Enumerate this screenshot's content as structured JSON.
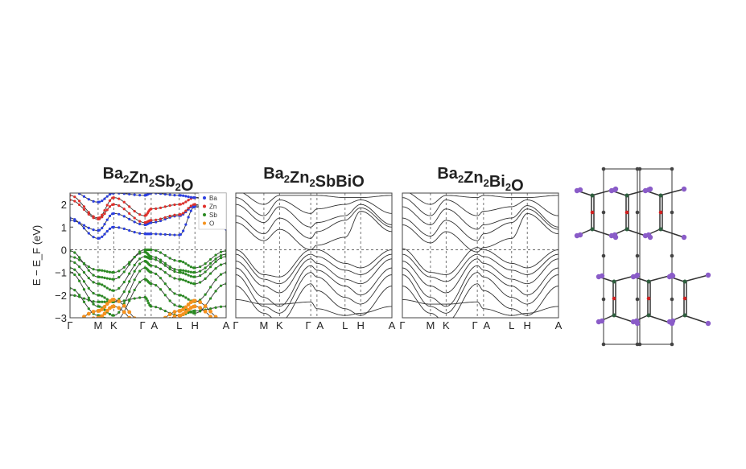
{
  "chart_data": [
    {
      "type": "line",
      "title": "Ba2Zn2Sb2O",
      "ylabel": "E − E_F (eV)",
      "ylim": [
        -3,
        2.5
      ],
      "yticks": [
        "2",
        "1",
        "0",
        "−1",
        "−2",
        "−3"
      ],
      "kpath": [
        "Γ",
        "M",
        "K",
        "Γ",
        "A",
        "L",
        "H",
        "A"
      ],
      "kpos": [
        0,
        0.18,
        0.28,
        0.48,
        0.52,
        0.7,
        0.8,
        1.0
      ],
      "grid": "dashed at high-symmetry points and E=0",
      "legend": {
        "placement": "top-right",
        "entries": [
          {
            "name": "Ba",
            "color": "#2b3fe0"
          },
          {
            "name": "Zn",
            "color": "#e0302b"
          },
          {
            "name": "Sb",
            "color": "#2a8a22"
          },
          {
            "name": "O",
            "color": "#f5921e"
          }
        ]
      },
      "bands": [
        {
          "proj": "Ba",
          "values": [
            1.4,
            0.5,
            1.0,
            0.7,
            0.7,
            0.65,
            1.9,
            0.9
          ]
        },
        {
          "proj": "Ba",
          "values": [
            1.3,
            0.85,
            1.6,
            1.1,
            1.2,
            1.5,
            1.95,
            1.0
          ]
        },
        {
          "proj": "Zn",
          "values": [
            2.2,
            1.35,
            2.0,
            1.2,
            1.3,
            1.55,
            2.0,
            1.0
          ]
        },
        {
          "proj": "Zn",
          "values": [
            2.4,
            1.4,
            2.3,
            1.5,
            1.8,
            2.0,
            2.3,
            1.5
          ]
        },
        {
          "proj": "Ba",
          "values": [
            2.6,
            2.1,
            2.5,
            2.4,
            2.5,
            2.4,
            2.3,
            2.5
          ]
        },
        {
          "proj": "Sb",
          "values": [
            -0.05,
            -1.2,
            -1.3,
            0.0,
            0.0,
            -0.5,
            -0.8,
            -0.05
          ]
        },
        {
          "proj": "Sb",
          "values": [
            -0.3,
            -0.9,
            -1.0,
            -0.1,
            -0.3,
            -0.9,
            -1.0,
            -0.2
          ]
        },
        {
          "proj": "Sb",
          "values": [
            -0.5,
            -1.5,
            -1.8,
            -0.3,
            -0.4,
            -1.0,
            -1.2,
            -0.3
          ]
        },
        {
          "proj": "Sb",
          "values": [
            -0.8,
            -2.0,
            -2.3,
            -0.5,
            -0.7,
            -1.3,
            -1.5,
            -0.6
          ]
        },
        {
          "proj": "Sb",
          "values": [
            -1.0,
            -2.5,
            -2.9,
            -0.8,
            -1.0,
            -2.0,
            -2.3,
            -1.0
          ]
        },
        {
          "proj": "Sb",
          "values": [
            -1.7,
            -2.9,
            -3.2,
            -1.3,
            -1.5,
            -2.5,
            -2.8,
            -1.5
          ]
        },
        {
          "proj": "Sb",
          "values": [
            -2.0,
            -2.3,
            -2.3,
            -2.1,
            -2.5,
            -2.9,
            -2.7,
            -2.5
          ]
        },
        {
          "proj": "O",
          "values": [
            -3.2,
            -2.7,
            -2.2,
            -3.3,
            -3.3,
            -2.7,
            -2.25,
            -3.2
          ]
        },
        {
          "proj": "O",
          "values": [
            -3.4,
            -3.0,
            -2.5,
            -3.5,
            -3.5,
            -2.9,
            -2.5,
            -3.4
          ]
        }
      ]
    },
    {
      "type": "line",
      "title": "Ba2Zn2SbBiO",
      "ylim": [
        -3,
        2.5
      ],
      "kpath": [
        "Γ",
        "M",
        "K",
        "Γ",
        "A",
        "L",
        "H",
        "A"
      ],
      "kpos": [
        0,
        0.18,
        0.28,
        0.48,
        0.52,
        0.7,
        0.8,
        1.0
      ],
      "bands": [
        {
          "values": [
            1.2,
            0.4,
            0.9,
            0.0,
            0.2,
            0.55,
            1.7,
            0.8
          ]
        },
        {
          "values": [
            1.5,
            0.7,
            1.4,
            0.5,
            0.8,
            1.3,
            1.85,
            1.0
          ]
        },
        {
          "values": [
            2.0,
            1.2,
            1.9,
            1.0,
            1.2,
            1.5,
            2.0,
            1.1
          ]
        },
        {
          "values": [
            2.3,
            1.5,
            2.2,
            1.6,
            1.8,
            2.0,
            2.2,
            1.6
          ]
        },
        {
          "values": [
            2.6,
            2.0,
            2.4,
            2.4,
            2.4,
            2.3,
            2.3,
            2.4
          ]
        },
        {
          "values": [
            0.0,
            -1.1,
            -1.2,
            0.0,
            0.0,
            -0.6,
            -0.8,
            0.0
          ]
        },
        {
          "values": [
            -0.2,
            -1.3,
            -1.5,
            -0.2,
            -0.3,
            -0.9,
            -1.1,
            -0.2
          ]
        },
        {
          "values": [
            -0.5,
            -1.6,
            -1.9,
            -0.4,
            -0.6,
            -1.3,
            -1.5,
            -0.4
          ]
        },
        {
          "values": [
            -0.8,
            -2.1,
            -2.5,
            -0.7,
            -0.9,
            -1.6,
            -2.0,
            -0.8
          ]
        },
        {
          "values": [
            -1.1,
            -2.5,
            -2.8,
            -1.0,
            -1.2,
            -2.1,
            -2.4,
            -1.1
          ]
        },
        {
          "values": [
            -1.6,
            -2.8,
            -3.2,
            -1.5,
            -1.8,
            -2.6,
            -2.9,
            -1.6
          ]
        },
        {
          "values": [
            -2.2,
            -2.4,
            -2.4,
            -2.3,
            -2.6,
            -2.9,
            -2.8,
            -2.5
          ]
        }
      ]
    },
    {
      "type": "line",
      "title": "Ba2Zn2Bi2O",
      "ylim": [
        -3,
        2.5
      ],
      "kpath": [
        "Γ",
        "M",
        "K",
        "Γ",
        "A",
        "L",
        "H",
        "A"
      ],
      "kpos": [
        0,
        0.18,
        0.28,
        0.48,
        0.52,
        0.7,
        0.8,
        1.0
      ],
      "bands": [
        {
          "values": [
            1.1,
            0.3,
            0.8,
            -0.1,
            0.1,
            0.5,
            1.6,
            0.7
          ]
        },
        {
          "values": [
            1.4,
            0.6,
            1.3,
            0.4,
            0.7,
            1.2,
            1.8,
            0.9
          ]
        },
        {
          "values": [
            1.9,
            1.1,
            1.8,
            0.9,
            1.1,
            1.4,
            1.95,
            1.0
          ]
        },
        {
          "values": [
            2.3,
            1.5,
            2.2,
            1.5,
            1.7,
            1.9,
            2.2,
            1.5
          ]
        },
        {
          "values": [
            2.6,
            2.0,
            2.4,
            2.3,
            2.4,
            2.3,
            2.3,
            2.4
          ]
        },
        {
          "values": [
            0.05,
            -1.0,
            -1.1,
            0.1,
            0.0,
            -0.6,
            -0.8,
            0.0
          ]
        },
        {
          "values": [
            -0.2,
            -1.2,
            -1.4,
            -0.2,
            -0.3,
            -0.9,
            -1.1,
            -0.2
          ]
        },
        {
          "values": [
            -0.5,
            -1.6,
            -1.9,
            -0.4,
            -0.6,
            -1.3,
            -1.5,
            -0.4
          ]
        },
        {
          "values": [
            -0.8,
            -2.1,
            -2.5,
            -0.7,
            -0.9,
            -1.6,
            -2.0,
            -0.8
          ]
        },
        {
          "values": [
            -1.1,
            -2.5,
            -2.8,
            -1.0,
            -1.2,
            -2.1,
            -2.4,
            -1.1
          ]
        },
        {
          "values": [
            -1.6,
            -2.8,
            -3.2,
            -1.5,
            -1.8,
            -2.6,
            -2.9,
            -1.6
          ]
        },
        {
          "values": [
            -2.2,
            -2.4,
            -2.4,
            -2.3,
            -2.6,
            -2.9,
            -2.8,
            -2.5
          ]
        }
      ]
    }
  ],
  "structure": {
    "atom_colors": {
      "Ba": "#8a5cc8",
      "Zn": "#2e5e3e",
      "O": "#d02020",
      "Sb": "#444444"
    }
  }
}
